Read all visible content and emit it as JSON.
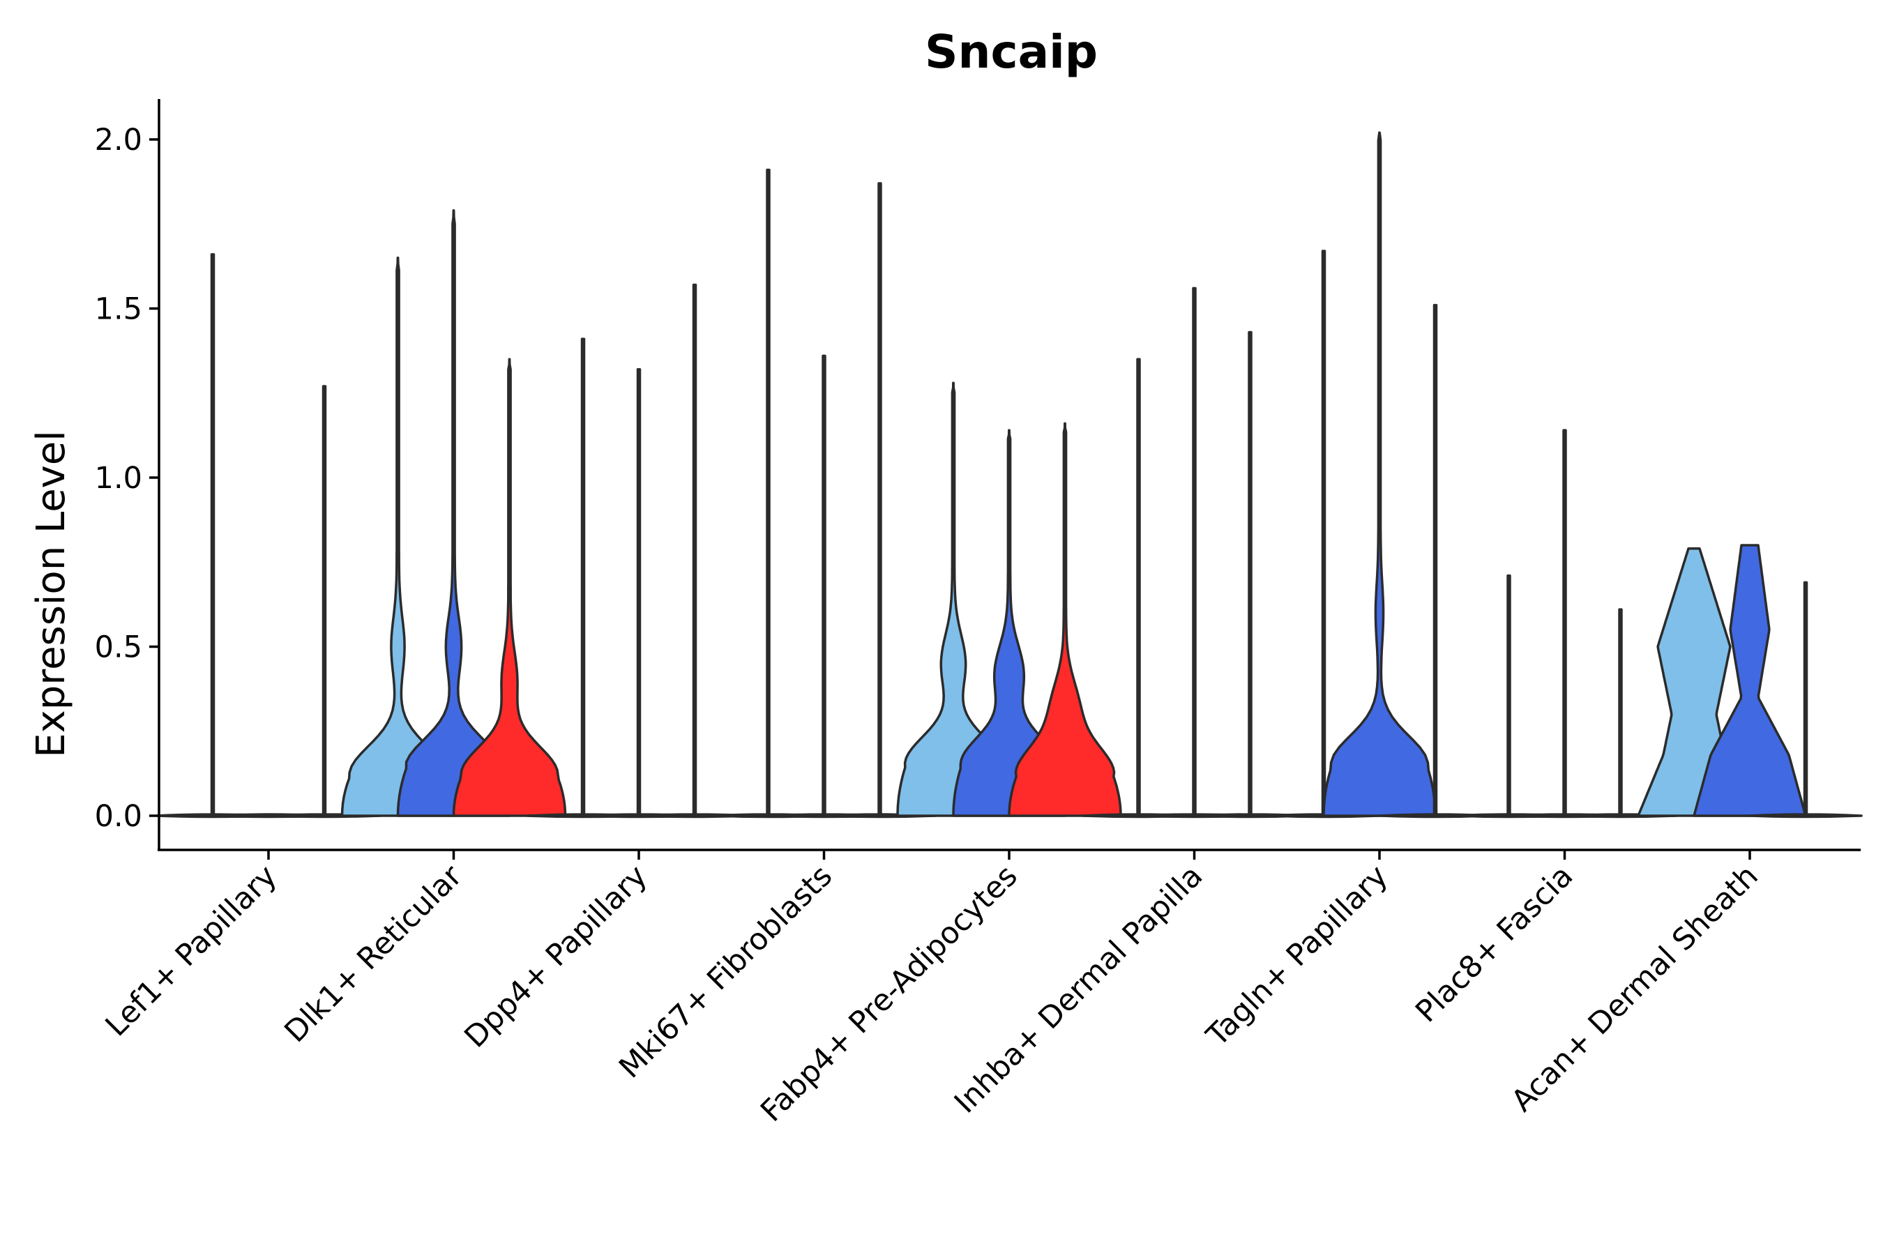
{
  "chart_data": {
    "type": "violin",
    "title": "Sncaip",
    "xlabel": "",
    "ylabel": "Expression Level",
    "ylim": [
      -0.1,
      2.12
    ],
    "yticks": [
      "0.0",
      "0.5",
      "1.0",
      "1.5",
      "2.0"
    ],
    "ytick_values": [
      0,
      0.5,
      1.0,
      1.5,
      2.0
    ],
    "categories": [
      "Lef1+ Papillary",
      "Dlk1+ Reticular",
      "Dpp4+ Papillary",
      "Mki67+ Fibroblasts",
      "Fabp4+ Pre-Adipocytes",
      "Inhba+ Dermal Papilla",
      "Tagln+ Papillary",
      "Plac8+ Fascia",
      "Acan+ Dermal Sheath"
    ],
    "series_colors": [
      "#7fbfea",
      "#4169e1",
      "#ff2a2a"
    ],
    "groups": [
      {
        "category": "Lef1+ Papillary",
        "violins": [
          {
            "series": 0,
            "max": 1.66,
            "shape": "flat"
          },
          {
            "series": 1,
            "max": 0.0,
            "shape": "flat"
          },
          {
            "series": 2,
            "max": 1.27,
            "shape": "flat"
          }
        ]
      },
      {
        "category": "Dlk1+ Reticular",
        "violins": [
          {
            "series": 0,
            "max": 1.65,
            "shape": "spread",
            "peak": 0.12,
            "mid": 0.5,
            "midw": 0.1
          },
          {
            "series": 1,
            "max": 1.79,
            "shape": "spread",
            "peak": 0.14,
            "mid": 0.5,
            "midw": 0.12
          },
          {
            "series": 2,
            "max": 1.35,
            "shape": "spread",
            "peak": 0.12,
            "mid": 0.4,
            "midw": 0.12
          }
        ]
      },
      {
        "category": "Dpp4+ Papillary",
        "violins": [
          {
            "series": 0,
            "max": 1.41,
            "shape": "flat"
          },
          {
            "series": 1,
            "max": 1.32,
            "shape": "flat"
          },
          {
            "series": 2,
            "max": 1.57,
            "shape": "flat"
          }
        ]
      },
      {
        "category": "Mki67+ Fibroblasts",
        "violins": [
          {
            "series": 0,
            "max": 1.91,
            "shape": "flat"
          },
          {
            "series": 1,
            "max": 1.36,
            "shape": "flat"
          },
          {
            "series": 2,
            "max": 1.87,
            "shape": "flat"
          }
        ]
      },
      {
        "category": "Fabp4+ Pre-Adipocytes",
        "violins": [
          {
            "series": 0,
            "max": 1.28,
            "shape": "spread",
            "peak": 0.15,
            "mid": 0.45,
            "midw": 0.2
          },
          {
            "series": 1,
            "max": 1.14,
            "shape": "spread",
            "peak": 0.15,
            "mid": 0.42,
            "midw": 0.24
          },
          {
            "series": 2,
            "max": 1.16,
            "shape": "spread",
            "peak": 0.12,
            "mid": 0.32,
            "midw": 0.22
          }
        ]
      },
      {
        "category": "Inhba+ Dermal Papilla",
        "violins": [
          {
            "series": 0,
            "max": 1.35,
            "shape": "flat"
          },
          {
            "series": 1,
            "max": 1.56,
            "shape": "flat"
          },
          {
            "series": 2,
            "max": 1.43,
            "shape": "flat"
          }
        ]
      },
      {
        "category": "Tagln+ Papillary",
        "violins": [
          {
            "series": 0,
            "max": 1.67,
            "shape": "flat"
          },
          {
            "series": 1,
            "max": 2.02,
            "shape": "spread",
            "peak": 0.15,
            "mid": 0.6,
            "midw": 0.05
          },
          {
            "series": 2,
            "max": 1.51,
            "shape": "flat"
          }
        ]
      },
      {
        "category": "Plac8+ Fascia",
        "violins": [
          {
            "series": 0,
            "max": 0.71,
            "shape": "flat"
          },
          {
            "series": 1,
            "max": 1.14,
            "shape": "flat"
          },
          {
            "series": 2,
            "max": 0.61,
            "shape": "flat"
          }
        ]
      },
      {
        "category": "Acan+ Dermal Sheath",
        "violins": [
          {
            "series": 0,
            "max": 0.79,
            "shape": "acan0"
          },
          {
            "series": 1,
            "max": 0.8,
            "shape": "acan1"
          },
          {
            "series": 2,
            "max": 0.69,
            "shape": "flat"
          }
        ]
      }
    ]
  }
}
